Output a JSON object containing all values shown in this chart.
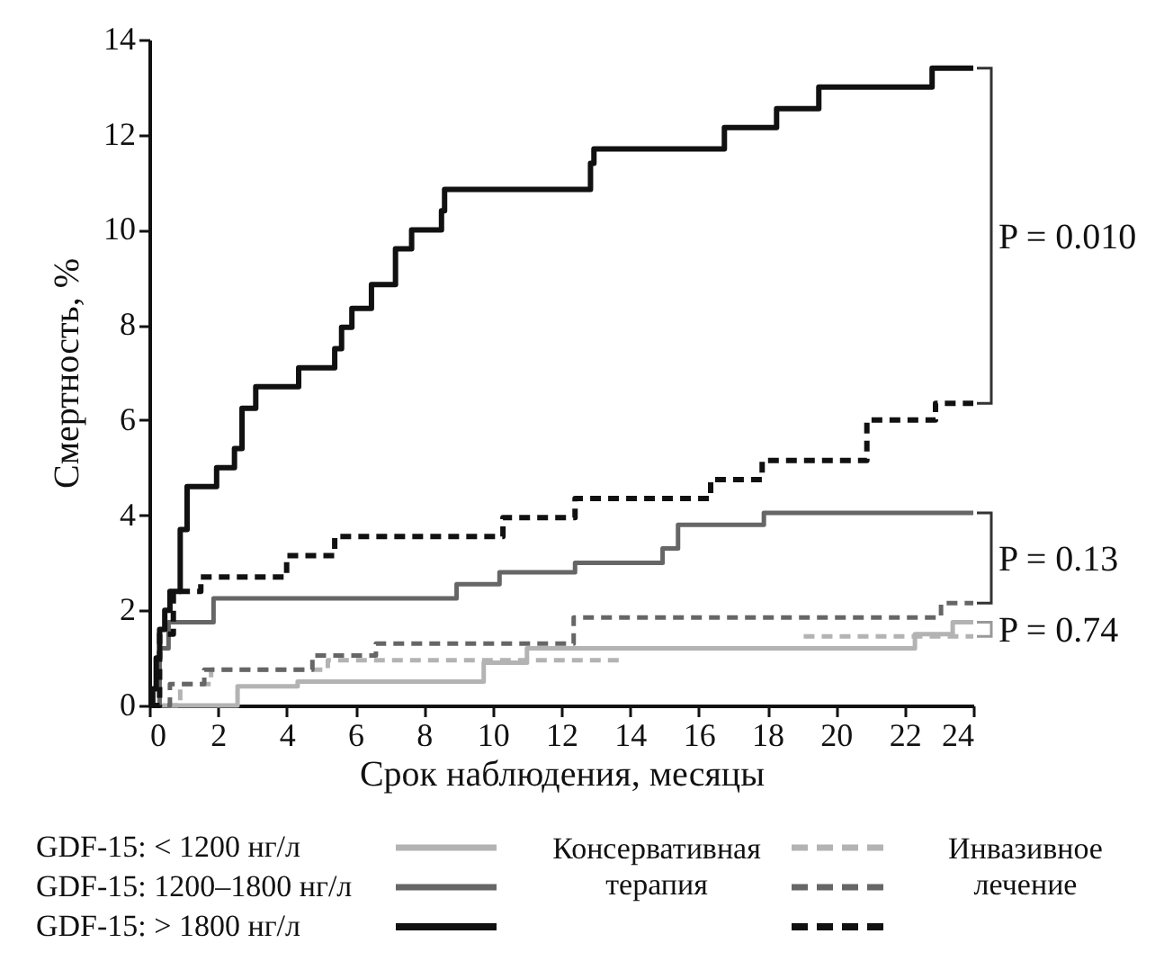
{
  "chart_data": {
    "type": "step",
    "xlabel": "Срок наблюдения, месяцы",
    "ylabel": "Смертность, %",
    "xlim": [
      0,
      24
    ],
    "xticks": [
      0,
      2,
      4,
      6,
      8,
      10,
      12,
      14,
      16,
      18,
      20,
      22,
      24
    ],
    "ylim": [
      0,
      14
    ],
    "yticks": [
      0,
      2,
      4,
      6,
      8,
      10,
      12,
      14
    ],
    "series": [
      {
        "color": "#b3b3b3",
        "line_style": "solid",
        "x": [
          0,
          2.57,
          4.32,
          9.74,
          11.0,
          22.3,
          23.4,
          24
        ],
        "values": [
          0,
          0.4,
          0.5,
          0.9,
          1.2,
          1.5,
          1.75,
          1.75
        ]
      },
      {
        "color": "#666666",
        "line_style": "solid",
        "x": [
          0,
          0.3,
          0.56,
          1.87,
          8.95,
          10.2,
          12.4,
          14.95,
          15.4,
          17.9,
          24
        ],
        "values": [
          0,
          1.2,
          1.75,
          2.25,
          2.55,
          2.8,
          3.0,
          3.3,
          3.8,
          4.05,
          4.05
        ]
      },
      {
        "color": "#111111",
        "line_style": "solid",
        "x": [
          0,
          0.1,
          0.2,
          0.3,
          0.45,
          0.6,
          0.9,
          1.1,
          1.96,
          2.48,
          2.7,
          3.1,
          4.35,
          5.4,
          5.6,
          5.9,
          6.47,
          7.17,
          7.64,
          8.51,
          8.6,
          12.85,
          12.95,
          16.75,
          18.27,
          19.5,
          22.8,
          24
        ],
        "values": [
          0,
          0.35,
          1.0,
          1.6,
          2.0,
          2.4,
          3.7,
          4.6,
          5.0,
          5.4,
          6.25,
          6.7,
          7.1,
          7.5,
          7.95,
          8.35,
          8.85,
          9.6,
          10.0,
          10.4,
          10.85,
          11.4,
          11.7,
          12.15,
          12.55,
          13.0,
          13.4,
          13.4
        ]
      },
      {
        "color": "#b3b3b3",
        "line_style": "dashed",
        "x": [
          0,
          0.9,
          1.8,
          5.2,
          13.75,
          16,
          19.06,
          24
        ],
        "values": [
          0,
          0.45,
          0.75,
          0.95,
          0.95,
          null,
          1.45,
          1.45
        ]
      },
      {
        "color": "#666666",
        "line_style": "dashed",
        "x": [
          0,
          0.6,
          1.6,
          4.75,
          6.6,
          12.36,
          23.06,
          24
        ],
        "values": [
          0,
          0.45,
          0.75,
          1.05,
          1.3,
          1.85,
          2.15,
          2.15
        ]
      },
      {
        "color": "#111111",
        "line_style": "dashed",
        "x": [
          0,
          0.3,
          0.7,
          1.5,
          4.0,
          5.4,
          10.3,
          12.4,
          16.35,
          17.85,
          20.9,
          22.9,
          24
        ],
        "values": [
          0,
          1.5,
          2.4,
          2.7,
          3.15,
          3.55,
          3.95,
          4.35,
          4.75,
          5.15,
          6.0,
          6.35,
          6.35
        ]
      }
    ],
    "annotations": [
      "P = 0.010",
      "P = 0.13",
      "P = 0.74",
      "GDF-15: < 1200 нг/л",
      "GDF-15: 1200–1800 нг/л",
      "GDF-15: > 1800 нг/л",
      "Консервативная терапия",
      "Инвазивное лечение"
    ]
  }
}
